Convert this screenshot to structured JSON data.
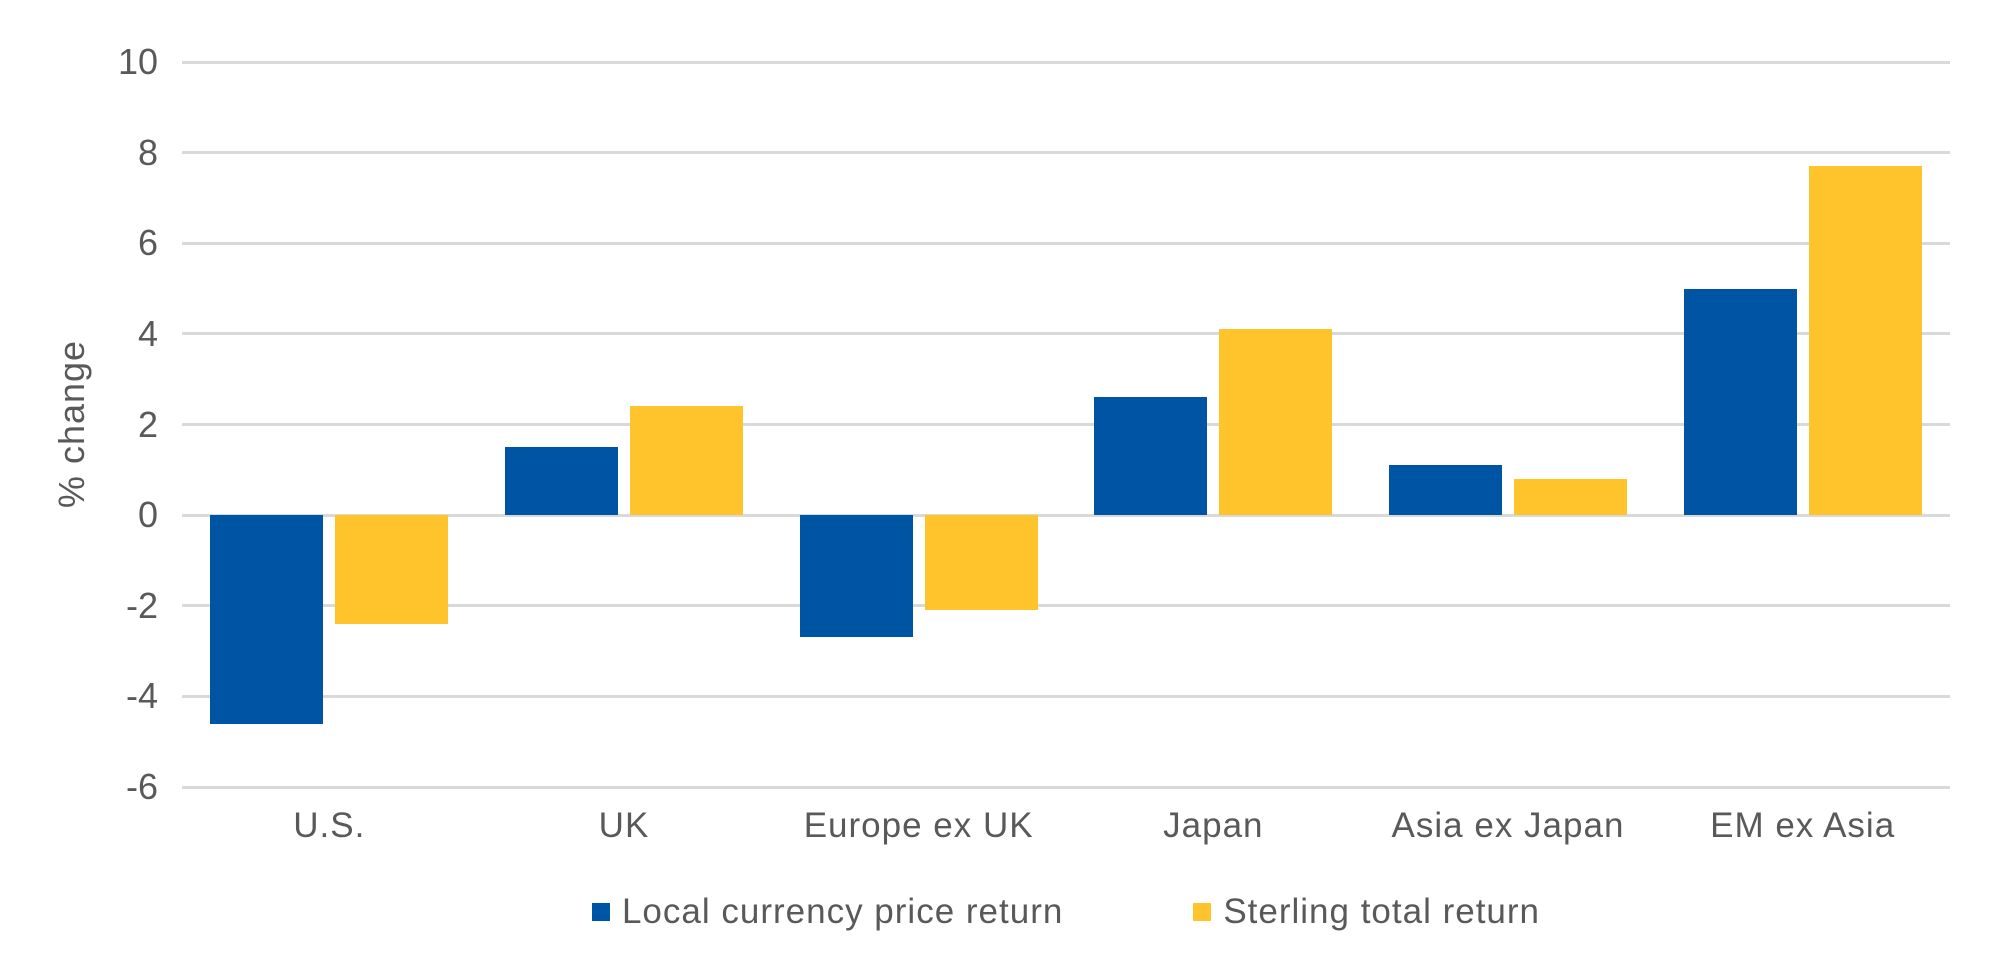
{
  "chart_data": {
    "type": "bar",
    "title": "",
    "ylabel": "% change",
    "xlabel": "",
    "ylim": [
      -6,
      10
    ],
    "yticks": [
      10,
      8,
      6,
      4,
      2,
      0,
      -2,
      -4,
      -6
    ],
    "grid": true,
    "legend_position": "bottom",
    "categories": [
      "U.S.",
      "UK",
      "Europe ex UK",
      "Japan",
      "Asia ex Japan",
      "EM ex Asia"
    ],
    "series": [
      {
        "name": "Local currency price return",
        "color": "#0054A4",
        "values": [
          -4.6,
          1.5,
          -2.7,
          2.6,
          1.1,
          5.0
        ]
      },
      {
        "name": "Sterling total return",
        "color": "#FFC32B",
        "values": [
          -2.4,
          2.4,
          -2.1,
          4.1,
          0.8,
          7.7
        ]
      }
    ]
  },
  "colors": {
    "gridline": "#d9d9d9",
    "axis_text": "#595959",
    "background": "#ffffff"
  }
}
